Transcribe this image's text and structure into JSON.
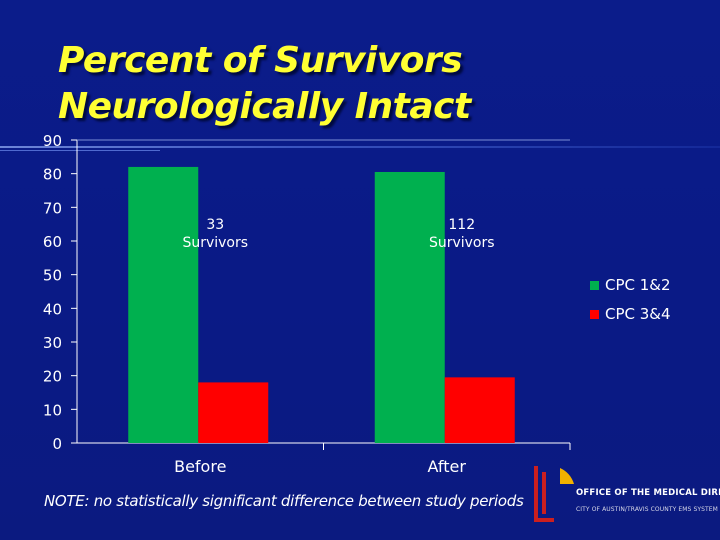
{
  "title": {
    "line1": "Percent of Survivors",
    "line2": "Neurologically Intact"
  },
  "note": "NOTE:  no statistically significant difference between study periods",
  "logo": {
    "line1": "OFFICE OF THE MEDICAL DIRECTOR",
    "line2": "CITY OF AUSTIN/TRAVIS COUNTY EMS SYSTEM"
  },
  "colors": {
    "title": "#ffff33",
    "background": "#0b1c8a",
    "cpc12": "#00b04f",
    "cpc34": "#ff0000",
    "text": "#ffffff"
  },
  "chart_data": {
    "type": "bar",
    "title": "Percent of Survivors Neurologically Intact",
    "categories": [
      "Before",
      "After"
    ],
    "series": [
      {
        "name": "CPC 1&2",
        "values": [
          82,
          80.5
        ],
        "color": "#00b04f"
      },
      {
        "name": "CPC 3&4",
        "values": [
          18,
          19.5
        ],
        "color": "#ff0000"
      }
    ],
    "ylim": [
      0,
      90
    ],
    "yticks": [
      0,
      10,
      20,
      30,
      40,
      50,
      60,
      70,
      80,
      90
    ],
    "annotations": [
      {
        "category": "Before",
        "line1": "33",
        "line2": "Survivors"
      },
      {
        "category": "After",
        "line1": "112",
        "line2": "Survivors"
      }
    ],
    "legend": "right",
    "grid": false
  }
}
